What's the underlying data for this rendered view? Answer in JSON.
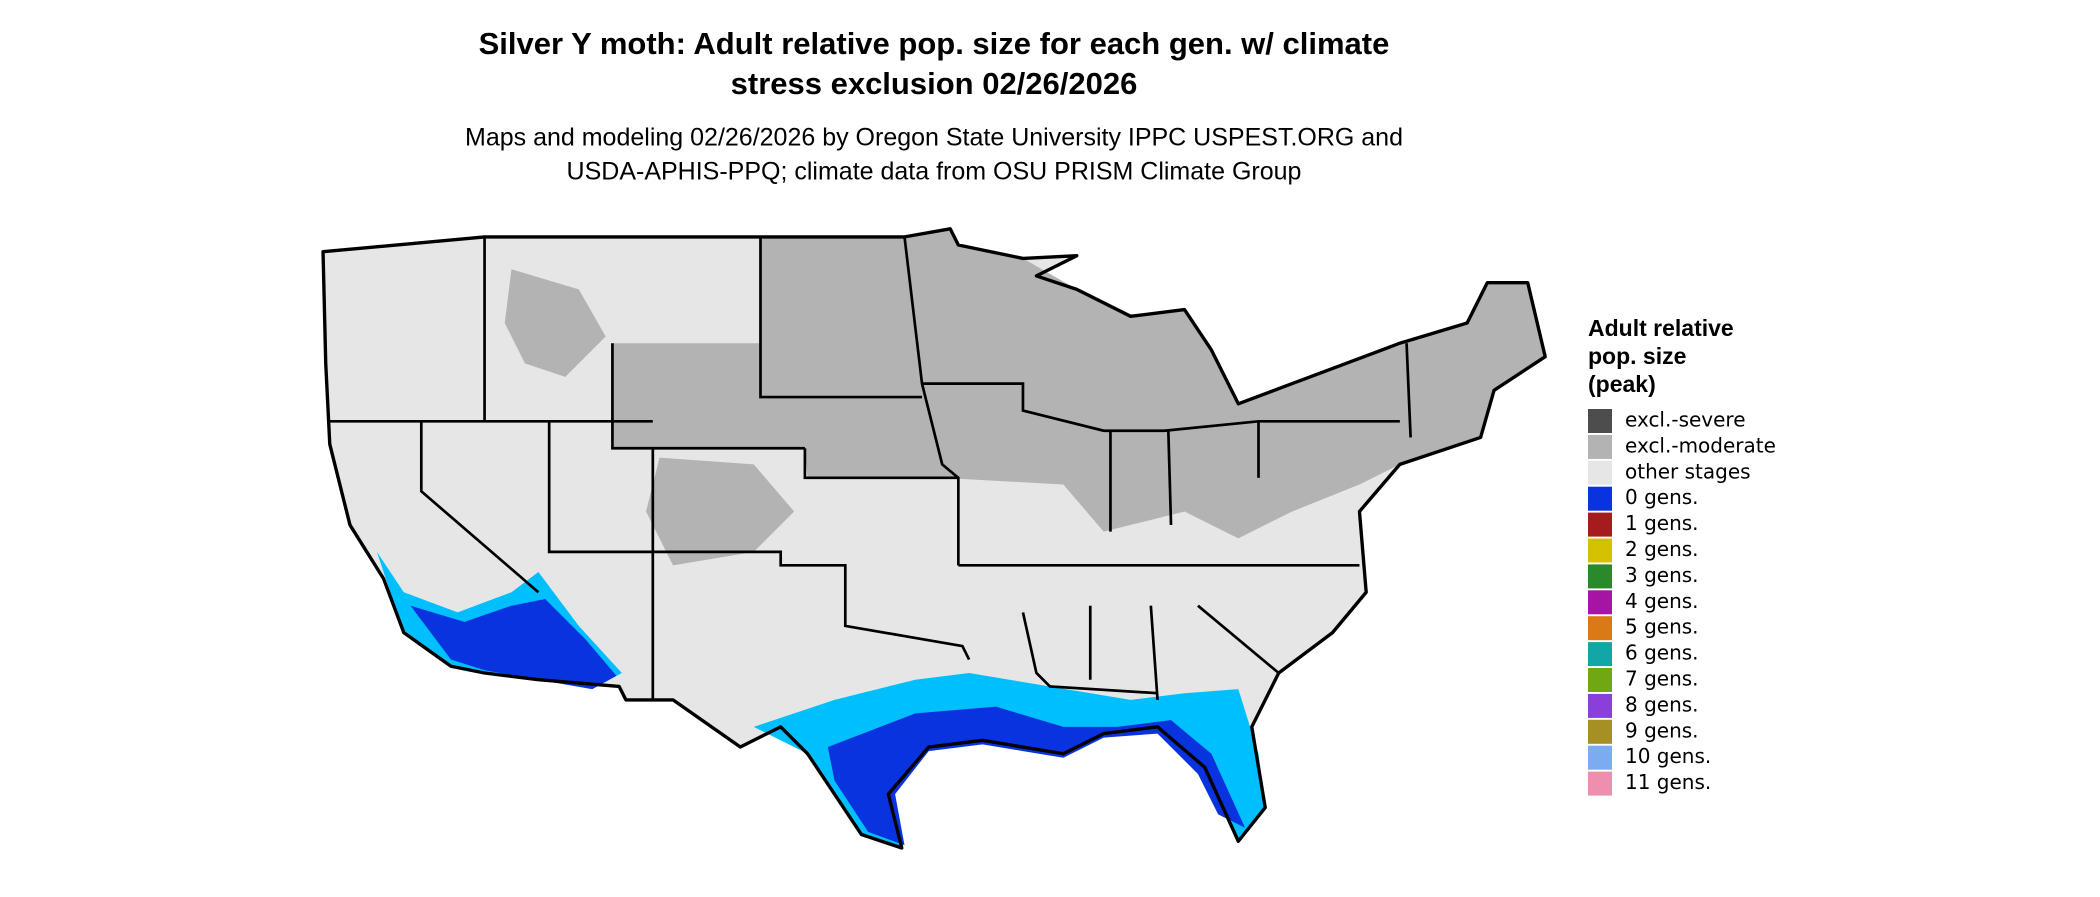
{
  "header": {
    "title": [
      "Silver Y moth: Adult relative pop. size for each gen. w/ climate",
      "stress exclusion 02/26/2026"
    ],
    "subtitle": [
      "Maps and modeling 02/26/2026 by Oregon State University IPPC USPEST.ORG and",
      "USDA-APHIS-PPQ; climate data from OSU PRISM Climate Group"
    ]
  },
  "legend": {
    "title": [
      "Adult relative",
      "pop. size",
      "(peak)"
    ],
    "items": [
      {
        "label": "excl.-severe",
        "color": "#4d4d4d"
      },
      {
        "label": "excl.-moderate",
        "color": "#b3b3b3"
      },
      {
        "label": "other stages",
        "color": "#e6e6e6"
      },
      {
        "label": "0 gens.",
        "color": "#0a33e0"
      },
      {
        "label": "1 gens.",
        "color": "#a51c1c"
      },
      {
        "label": "2 gens.",
        "color": "#d4c100"
      },
      {
        "label": "3 gens.",
        "color": "#2a8a2a"
      },
      {
        "label": "4 gens.",
        "color": "#a614a6"
      },
      {
        "label": "5 gens.",
        "color": "#d97a17"
      },
      {
        "label": "6 gens.",
        "color": "#13a6a6"
      },
      {
        "label": "7 gens.",
        "color": "#6fa812"
      },
      {
        "label": "8 gens.",
        "color": "#8b3fd9"
      },
      {
        "label": "9 gens.",
        "color": "#a69024"
      },
      {
        "label": "10 gens.",
        "color": "#7aacef"
      },
      {
        "label": "11 gens.",
        "color": "#ef8fae"
      }
    ]
  }
}
